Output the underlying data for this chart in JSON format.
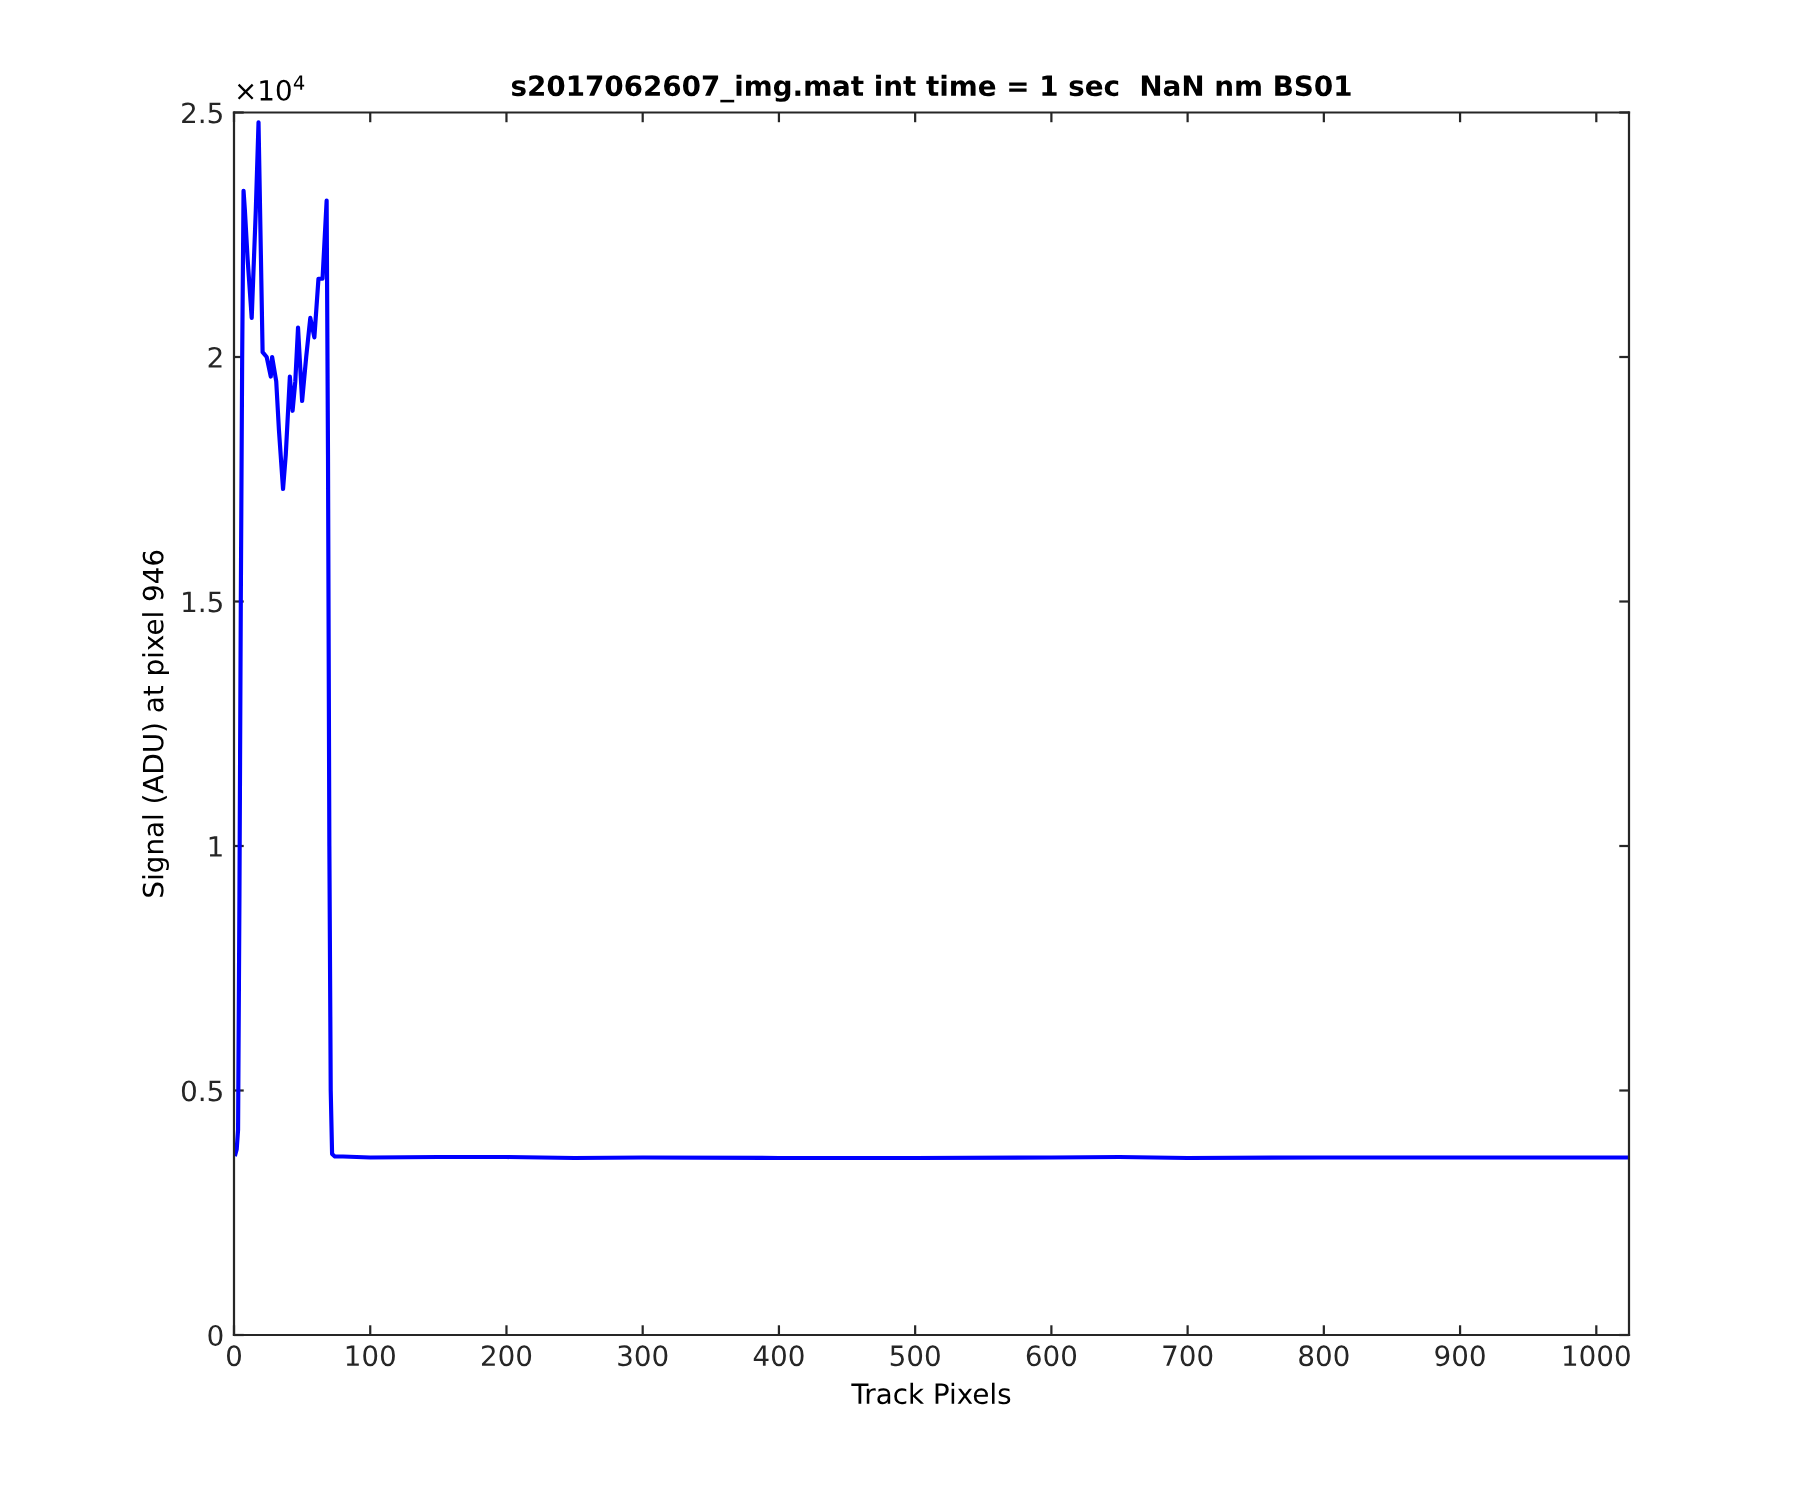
{
  "chart_data": {
    "type": "line",
    "title": "s2017062607_img.mat int time = 1 sec  NaN nm BS01",
    "xlabel": "Track Pixels",
    "ylabel": "Signal (ADU) at pixel 946",
    "annotations": [
      "×10$^{4}$"
    ],
    "series": [
      {
        "color": "#0000ff",
        "x": [
          1,
          2,
          3,
          4,
          5,
          6,
          7,
          8,
          10,
          13,
          16,
          18,
          21,
          24,
          27,
          28,
          31,
          33,
          36,
          38,
          41,
          43,
          45,
          47,
          50,
          53,
          56,
          59,
          62,
          65,
          68,
          69,
          70,
          71,
          72,
          74,
          80,
          100,
          150,
          200,
          250,
          300,
          400,
          500,
          600,
          650,
          700,
          800,
          900,
          1000,
          1024
        ],
        "values": [
          0.37,
          0.38,
          0.42,
          0.9,
          1.5,
          2.0,
          2.34,
          2.3,
          2.2,
          2.08,
          2.3,
          2.48,
          2.01,
          2.0,
          1.96,
          2.0,
          1.95,
          1.85,
          1.73,
          1.8,
          1.96,
          1.89,
          1.95,
          2.06,
          1.91,
          2.0,
          2.08,
          2.04,
          2.16,
          2.16,
          2.32,
          1.8,
          1.0,
          0.5,
          0.37,
          0.365,
          0.365,
          0.363,
          0.364,
          0.364,
          0.362,
          0.363,
          0.362,
          0.362,
          0.363,
          0.364,
          0.362,
          0.363,
          0.363,
          0.363,
          0.363
        ]
      }
    ],
    "xlim": [
      0,
      1024
    ],
    "xticks": [
      0,
      100,
      200,
      300,
      400,
      500,
      600,
      700,
      800,
      900,
      1000
    ],
    "ylim": [
      0,
      2.5
    ],
    "yticks": [
      0,
      0.5,
      1,
      1.5,
      2,
      2.5
    ],
    "grid": false,
    "legend": false,
    "marker": "none",
    "line_style": "solid"
  }
}
